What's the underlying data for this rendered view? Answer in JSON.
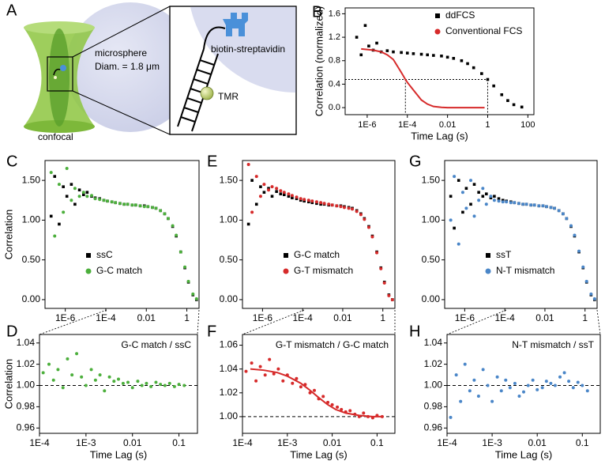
{
  "figure_a": {
    "panel": "A",
    "microsphere": "microsphere",
    "diameter": "Diam. = 1.8 μm",
    "streptavidin": "biotin-streptavidin",
    "dye": "TMR",
    "beam": "confocal"
  },
  "chart_data": [
    {
      "type": "scatter",
      "panel": "B",
      "xlabel": "Time Lag (s)",
      "ylabel": "Correlation (normalized)",
      "log_x": true,
      "xlim": [
        8e-08,
        200
      ],
      "ylim": [
        -0.12,
        1.7
      ],
      "xticks": [
        {
          "value": 1e-06,
          "label": "1E-6"
        },
        {
          "value": 0.0001,
          "label": "1E-4"
        },
        0.01,
        1,
        100
      ],
      "yticks": [
        {
          "value": 0,
          "label": "0.0"
        },
        0.4,
        0.8,
        1.2,
        1.6
      ],
      "legend": "upper right",
      "guides": {
        "y": 0.48,
        "x": [
          8e-05,
          1
        ]
      },
      "series": [
        {
          "name": "ddFCS",
          "color": "#000000",
          "marker": "square",
          "x": [
            3e-07,
            5e-07,
            8e-07,
            1.2e-06,
            2e-06,
            3e-06,
            5e-06,
            1e-05,
            2e-05,
            5e-05,
            0.0001,
            0.0002,
            0.0005,
            0.001,
            0.002,
            0.005,
            0.01,
            0.02,
            0.05,
            0.1,
            0.2,
            0.5,
            1,
            2,
            5,
            10,
            20,
            50
          ],
          "values": [
            1.2,
            0.9,
            1.4,
            1.05,
            0.98,
            1.1,
            0.95,
            0.97,
            0.95,
            0.94,
            0.93,
            0.92,
            0.91,
            0.9,
            0.89,
            0.88,
            0.86,
            0.84,
            0.8,
            0.75,
            0.68,
            0.58,
            0.48,
            0.37,
            0.22,
            0.12,
            0.05,
            0.01
          ]
        },
        {
          "name": "Conventional FCS",
          "color": "#d62a2a",
          "marker": "line",
          "x": [
            5e-07,
            1e-06,
            2e-06,
            5e-06,
            1e-05,
            2e-05,
            5e-05,
            8e-05,
            0.0001,
            0.0002,
            0.0005,
            0.001,
            0.002,
            0.005,
            0.01,
            0.05,
            0.2,
            0.7
          ],
          "values": [
            1.0,
            0.99,
            0.98,
            0.95,
            0.9,
            0.82,
            0.6,
            0.48,
            0.43,
            0.3,
            0.13,
            0.06,
            0.02,
            0.005,
            0,
            0,
            0,
            0
          ]
        }
      ]
    },
    {
      "type": "scatter",
      "panel": "C",
      "ylabel": "Correlation",
      "log_x": true,
      "xlim": [
        1e-07,
        4
      ],
      "ylim": [
        -0.11,
        1.75
      ],
      "xticks": [
        {
          "value": 1e-06,
          "label": "1E-6"
        },
        {
          "value": 0.0001,
          "label": "1E-4"
        },
        0.01,
        1
      ],
      "yticks": [
        {
          "value": 0,
          "label": "0.00"
        },
        {
          "value": 0.5,
          "label": "0.50"
        },
        {
          "value": 1,
          "label": "1.00"
        },
        {
          "value": 1.5,
          "label": "1.50"
        }
      ],
      "legend": "center",
      "x": [
        2e-07,
        3e-07,
        5e-07,
        8e-07,
        1.2e-06,
        2e-06,
        3e-06,
        5e-06,
        8e-06,
        1.2e-05,
        2e-05,
        3e-05,
        5e-05,
        8e-05,
        0.00012,
        0.0002,
        0.0003,
        0.0005,
        0.0008,
        0.0012,
        0.002,
        0.003,
        0.005,
        0.008,
        0.012,
        0.02,
        0.03,
        0.05,
        0.08,
        0.12,
        0.2,
        0.3,
        0.5,
        0.8,
        1.2,
        2,
        3
      ],
      "series": [
        {
          "name": "ssC",
          "color": "#000000",
          "marker": "square",
          "values": [
            1.05,
            1.55,
            0.95,
            1.42,
            1.3,
            1.45,
            1.2,
            1.38,
            1.32,
            1.35,
            1.3,
            1.28,
            1.27,
            1.25,
            1.24,
            1.23,
            1.22,
            1.21,
            1.2,
            1.2,
            1.19,
            1.19,
            1.18,
            1.18,
            1.17,
            1.16,
            1.15,
            1.12,
            1.08,
            1.02,
            0.92,
            0.8,
            0.6,
            0.4,
            0.22,
            0.06,
            0
          ]
        },
        {
          "name": "G-C match",
          "color": "#4caf3c",
          "marker": "circle",
          "values": [
            1.6,
            0.8,
            1.45,
            1.1,
            1.65,
            1.25,
            1.4,
            1.3,
            1.35,
            1.3,
            1.31,
            1.27,
            1.26,
            1.25,
            1.24,
            1.23,
            1.22,
            1.21,
            1.2,
            1.2,
            1.19,
            1.19,
            1.18,
            1.17,
            1.17,
            1.16,
            1.15,
            1.12,
            1.08,
            1.02,
            0.93,
            0.81,
            0.6,
            0.41,
            0.23,
            0.07,
            0.01
          ]
        }
      ]
    },
    {
      "type": "scatter",
      "panel": "E",
      "log_x": true,
      "xlim": [
        1e-07,
        4
      ],
      "ylim": [
        -0.11,
        1.75
      ],
      "xticks": [
        {
          "value": 1e-06,
          "label": "1E-6"
        },
        {
          "value": 0.0001,
          "label": "1E-4"
        },
        0.01,
        1
      ],
      "yticks": [
        {
          "value": 0,
          "label": "0.00"
        },
        {
          "value": 0.5,
          "label": "0.50"
        },
        {
          "value": 1,
          "label": "1.00"
        },
        {
          "value": 1.5,
          "label": "1.50"
        }
      ],
      "legend": "center",
      "x": [
        2e-07,
        3e-07,
        5e-07,
        8e-07,
        1.2e-06,
        2e-06,
        3e-06,
        5e-06,
        8e-06,
        1.2e-05,
        2e-05,
        3e-05,
        5e-05,
        8e-05,
        0.00012,
        0.0002,
        0.0003,
        0.0005,
        0.0008,
        0.0012,
        0.002,
        0.003,
        0.005,
        0.008,
        0.012,
        0.02,
        0.03,
        0.05,
        0.08,
        0.12,
        0.2,
        0.3,
        0.5,
        0.8,
        1.2,
        2,
        3
      ],
      "series": [
        {
          "name": "G-C match",
          "color": "#000000",
          "marker": "square",
          "values": [
            0.95,
            1.5,
            1.2,
            1.42,
            1.35,
            1.4,
            1.3,
            1.36,
            1.33,
            1.32,
            1.3,
            1.28,
            1.27,
            1.25,
            1.24,
            1.23,
            1.22,
            1.21,
            1.2,
            1.2,
            1.19,
            1.19,
            1.18,
            1.18,
            1.17,
            1.16,
            1.15,
            1.12,
            1.08,
            1.02,
            0.92,
            0.8,
            0.6,
            0.4,
            0.22,
            0.06,
            0
          ]
        },
        {
          "name": "G-T mismatch",
          "color": "#d62a2a",
          "marker": "circle",
          "values": [
            1.7,
            1.1,
            1.55,
            1.3,
            1.45,
            1.38,
            1.42,
            1.4,
            1.37,
            1.35,
            1.33,
            1.31,
            1.29,
            1.27,
            1.26,
            1.25,
            1.24,
            1.23,
            1.22,
            1.21,
            1.2,
            1.19,
            1.18,
            1.17,
            1.16,
            1.15,
            1.14,
            1.11,
            1.07,
            1.01,
            0.91,
            0.79,
            0.59,
            0.39,
            0.21,
            0.05,
            0
          ]
        }
      ]
    },
    {
      "type": "scatter",
      "panel": "G",
      "log_x": true,
      "xlim": [
        1e-07,
        4
      ],
      "ylim": [
        -0.11,
        1.75
      ],
      "xticks": [
        {
          "value": 1e-06,
          "label": "1E-6"
        },
        {
          "value": 0.0001,
          "label": "1E-4"
        },
        0.01,
        1
      ],
      "yticks": [
        {
          "value": 0,
          "label": "0.00"
        },
        {
          "value": 0.5,
          "label": "0.50"
        },
        {
          "value": 1,
          "label": "1.00"
        },
        {
          "value": 1.5,
          "label": "1.50"
        }
      ],
      "legend": "center",
      "x": [
        2e-07,
        3e-07,
        5e-07,
        8e-07,
        1.2e-06,
        2e-06,
        3e-06,
        5e-06,
        8e-06,
        1.2e-05,
        2e-05,
        3e-05,
        5e-05,
        8e-05,
        0.00012,
        0.0002,
        0.0003,
        0.0005,
        0.0008,
        0.0012,
        0.002,
        0.003,
        0.005,
        0.008,
        0.012,
        0.02,
        0.03,
        0.05,
        0.08,
        0.12,
        0.2,
        0.3,
        0.5,
        0.8,
        1.2,
        2,
        3
      ],
      "series": [
        {
          "name": "ssT",
          "color": "#000000",
          "marker": "square",
          "values": [
            1.3,
            0.9,
            1.5,
            1.1,
            1.4,
            1.2,
            1.45,
            1.35,
            1.3,
            1.33,
            1.28,
            1.3,
            1.27,
            1.25,
            1.24,
            1.23,
            1.22,
            1.21,
            1.2,
            1.2,
            1.19,
            1.19,
            1.18,
            1.18,
            1.17,
            1.16,
            1.15,
            1.12,
            1.08,
            1.02,
            0.92,
            0.8,
            0.6,
            0.4,
            0.22,
            0.06,
            0
          ]
        },
        {
          "name": "N-T mismatch",
          "color": "#4a86c8",
          "marker": "circle",
          "values": [
            1.0,
            1.55,
            0.7,
            1.35,
            1.15,
            1.5,
            1.05,
            1.25,
            1.4,
            1.2,
            1.3,
            1.25,
            1.24,
            1.23,
            1.23,
            1.22,
            1.22,
            1.21,
            1.2,
            1.2,
            1.19,
            1.19,
            1.18,
            1.18,
            1.17,
            1.16,
            1.15,
            1.12,
            1.08,
            1.02,
            0.93,
            0.81,
            0.61,
            0.41,
            0.23,
            0.07,
            0.01
          ]
        }
      ]
    },
    {
      "type": "scatter",
      "panel": "D",
      "xlabel": "Time Lag (s)",
      "ylabel": "Correlation",
      "log_x": true,
      "xlim": [
        0.0001,
        0.25
      ],
      "ylim": [
        0.955,
        1.048
      ],
      "xticks": [
        {
          "value": 0.0001,
          "label": "1E-4"
        },
        {
          "value": 0.001,
          "label": "1E-3"
        },
        0.01,
        0.1
      ],
      "yticks": [
        0.96,
        0.98,
        {
          "value": 1,
          "label": "1.00"
        },
        1.02,
        1.04
      ],
      "annotation": "G-C match / ssC",
      "hline": 1,
      "x": [
        0.00012,
        0.00016,
        0.0002,
        0.00025,
        0.00032,
        0.0004,
        0.0005,
        0.00063,
        0.0008,
        0.001,
        0.0013,
        0.0016,
        0.002,
        0.0025,
        0.0032,
        0.004,
        0.005,
        0.0063,
        0.008,
        0.01,
        0.013,
        0.016,
        0.02,
        0.025,
        0.032,
        0.04,
        0.05,
        0.063,
        0.08,
        0.1,
        0.13
      ],
      "series": [
        {
          "color": "#4caf3c",
          "marker": "circle",
          "values": [
            1.012,
            1.02,
            1.005,
            1.015,
            0.998,
            1.025,
            1.01,
            1.03,
            1.008,
            1.0,
            1.015,
            1.005,
            1.01,
            0.995,
            1.008,
            1.004,
            1.006,
            1.002,
            1.003,
            0.998,
            1.004,
            1.0,
            1.002,
            0.999,
            1.003,
            1.001,
            1.0,
            1.002,
            0.999,
            1.001,
            1.0
          ]
        }
      ]
    },
    {
      "type": "scatter",
      "panel": "F",
      "xlabel": "Time Lag (s)",
      "log_x": true,
      "xlim": [
        0.0001,
        0.25
      ],
      "ylim": [
        0.986,
        1.069
      ],
      "xticks": [
        {
          "value": 0.0001,
          "label": "1E-4"
        },
        {
          "value": 0.001,
          "label": "1E-3"
        },
        0.01,
        0.1
      ],
      "yticks": [
        {
          "value": 1,
          "label": "1.00"
        },
        1.02,
        1.04,
        1.06
      ],
      "annotation": "G-T mismatch / G-C match",
      "hline": 1,
      "x": [
        0.00012,
        0.00016,
        0.0002,
        0.00025,
        0.00032,
        0.0004,
        0.0005,
        0.00063,
        0.0008,
        0.001,
        0.0013,
        0.0016,
        0.002,
        0.0025,
        0.0032,
        0.004,
        0.005,
        0.0063,
        0.008,
        0.01,
        0.013,
        0.016,
        0.02,
        0.025,
        0.032,
        0.04,
        0.05,
        0.063,
        0.08,
        0.1,
        0.13
      ],
      "series": [
        {
          "color": "#d62a2a",
          "marker": "circle",
          "values": [
            1.038,
            1.045,
            1.03,
            1.042,
            1.035,
            1.048,
            1.036,
            1.04,
            1.03,
            1.035,
            1.028,
            1.032,
            1.025,
            1.027,
            1.02,
            1.022,
            1.015,
            1.017,
            1.012,
            1.01,
            1.008,
            1.006,
            1.004,
            1.005,
            1.002,
            1.0,
            1.003,
            1.0,
            0.999,
            1.001,
            1.0
          ]
        },
        {
          "color": "#d62a2a",
          "marker": "line",
          "x": [
            0.00015,
            0.0003,
            0.0006,
            0.001,
            0.002,
            0.003,
            0.005,
            0.008,
            0.012,
            0.02,
            0.04,
            0.08,
            0.13
          ],
          "values": [
            1.04,
            1.039,
            1.037,
            1.034,
            1.028,
            1.023,
            1.016,
            1.01,
            1.006,
            1.003,
            1.001,
            1.0,
            1.0
          ]
        }
      ]
    },
    {
      "type": "scatter",
      "panel": "H",
      "xlabel": "Time Lag (s)",
      "log_x": true,
      "xlim": [
        0.0001,
        0.25
      ],
      "ylim": [
        0.955,
        1.048
      ],
      "xticks": [
        {
          "value": 0.0001,
          "label": "1E-4"
        },
        {
          "value": 0.001,
          "label": "1E-3"
        },
        0.01,
        0.1
      ],
      "yticks": [
        0.96,
        0.98,
        {
          "value": 1,
          "label": "1.00"
        },
        1.02,
        1.04
      ],
      "annotation": "N-T mismatch / ssT",
      "hline": 1,
      "x": [
        0.00012,
        0.00016,
        0.0002,
        0.00025,
        0.00032,
        0.0004,
        0.0005,
        0.00063,
        0.0008,
        0.001,
        0.0013,
        0.0016,
        0.002,
        0.0025,
        0.0032,
        0.004,
        0.005,
        0.0063,
        0.008,
        0.01,
        0.013,
        0.016,
        0.02,
        0.025,
        0.032,
        0.04,
        0.05,
        0.063,
        0.08,
        0.1,
        0.13
      ],
      "series": [
        {
          "color": "#4a86c8",
          "marker": "circle",
          "values": [
            0.97,
            1.01,
            0.985,
            1.02,
            0.995,
            1.005,
            0.99,
            1.015,
            1.0,
            0.985,
            1.008,
            0.995,
            1.005,
            0.998,
            1.002,
            0.99,
            0.994,
            1.0,
            1.005,
            0.996,
            0.998,
            1.004,
            1.002,
            1.0,
            1.008,
            1.012,
            1.004,
            0.998,
            1.003,
            1.0,
            0.995
          ]
        }
      ]
    }
  ]
}
